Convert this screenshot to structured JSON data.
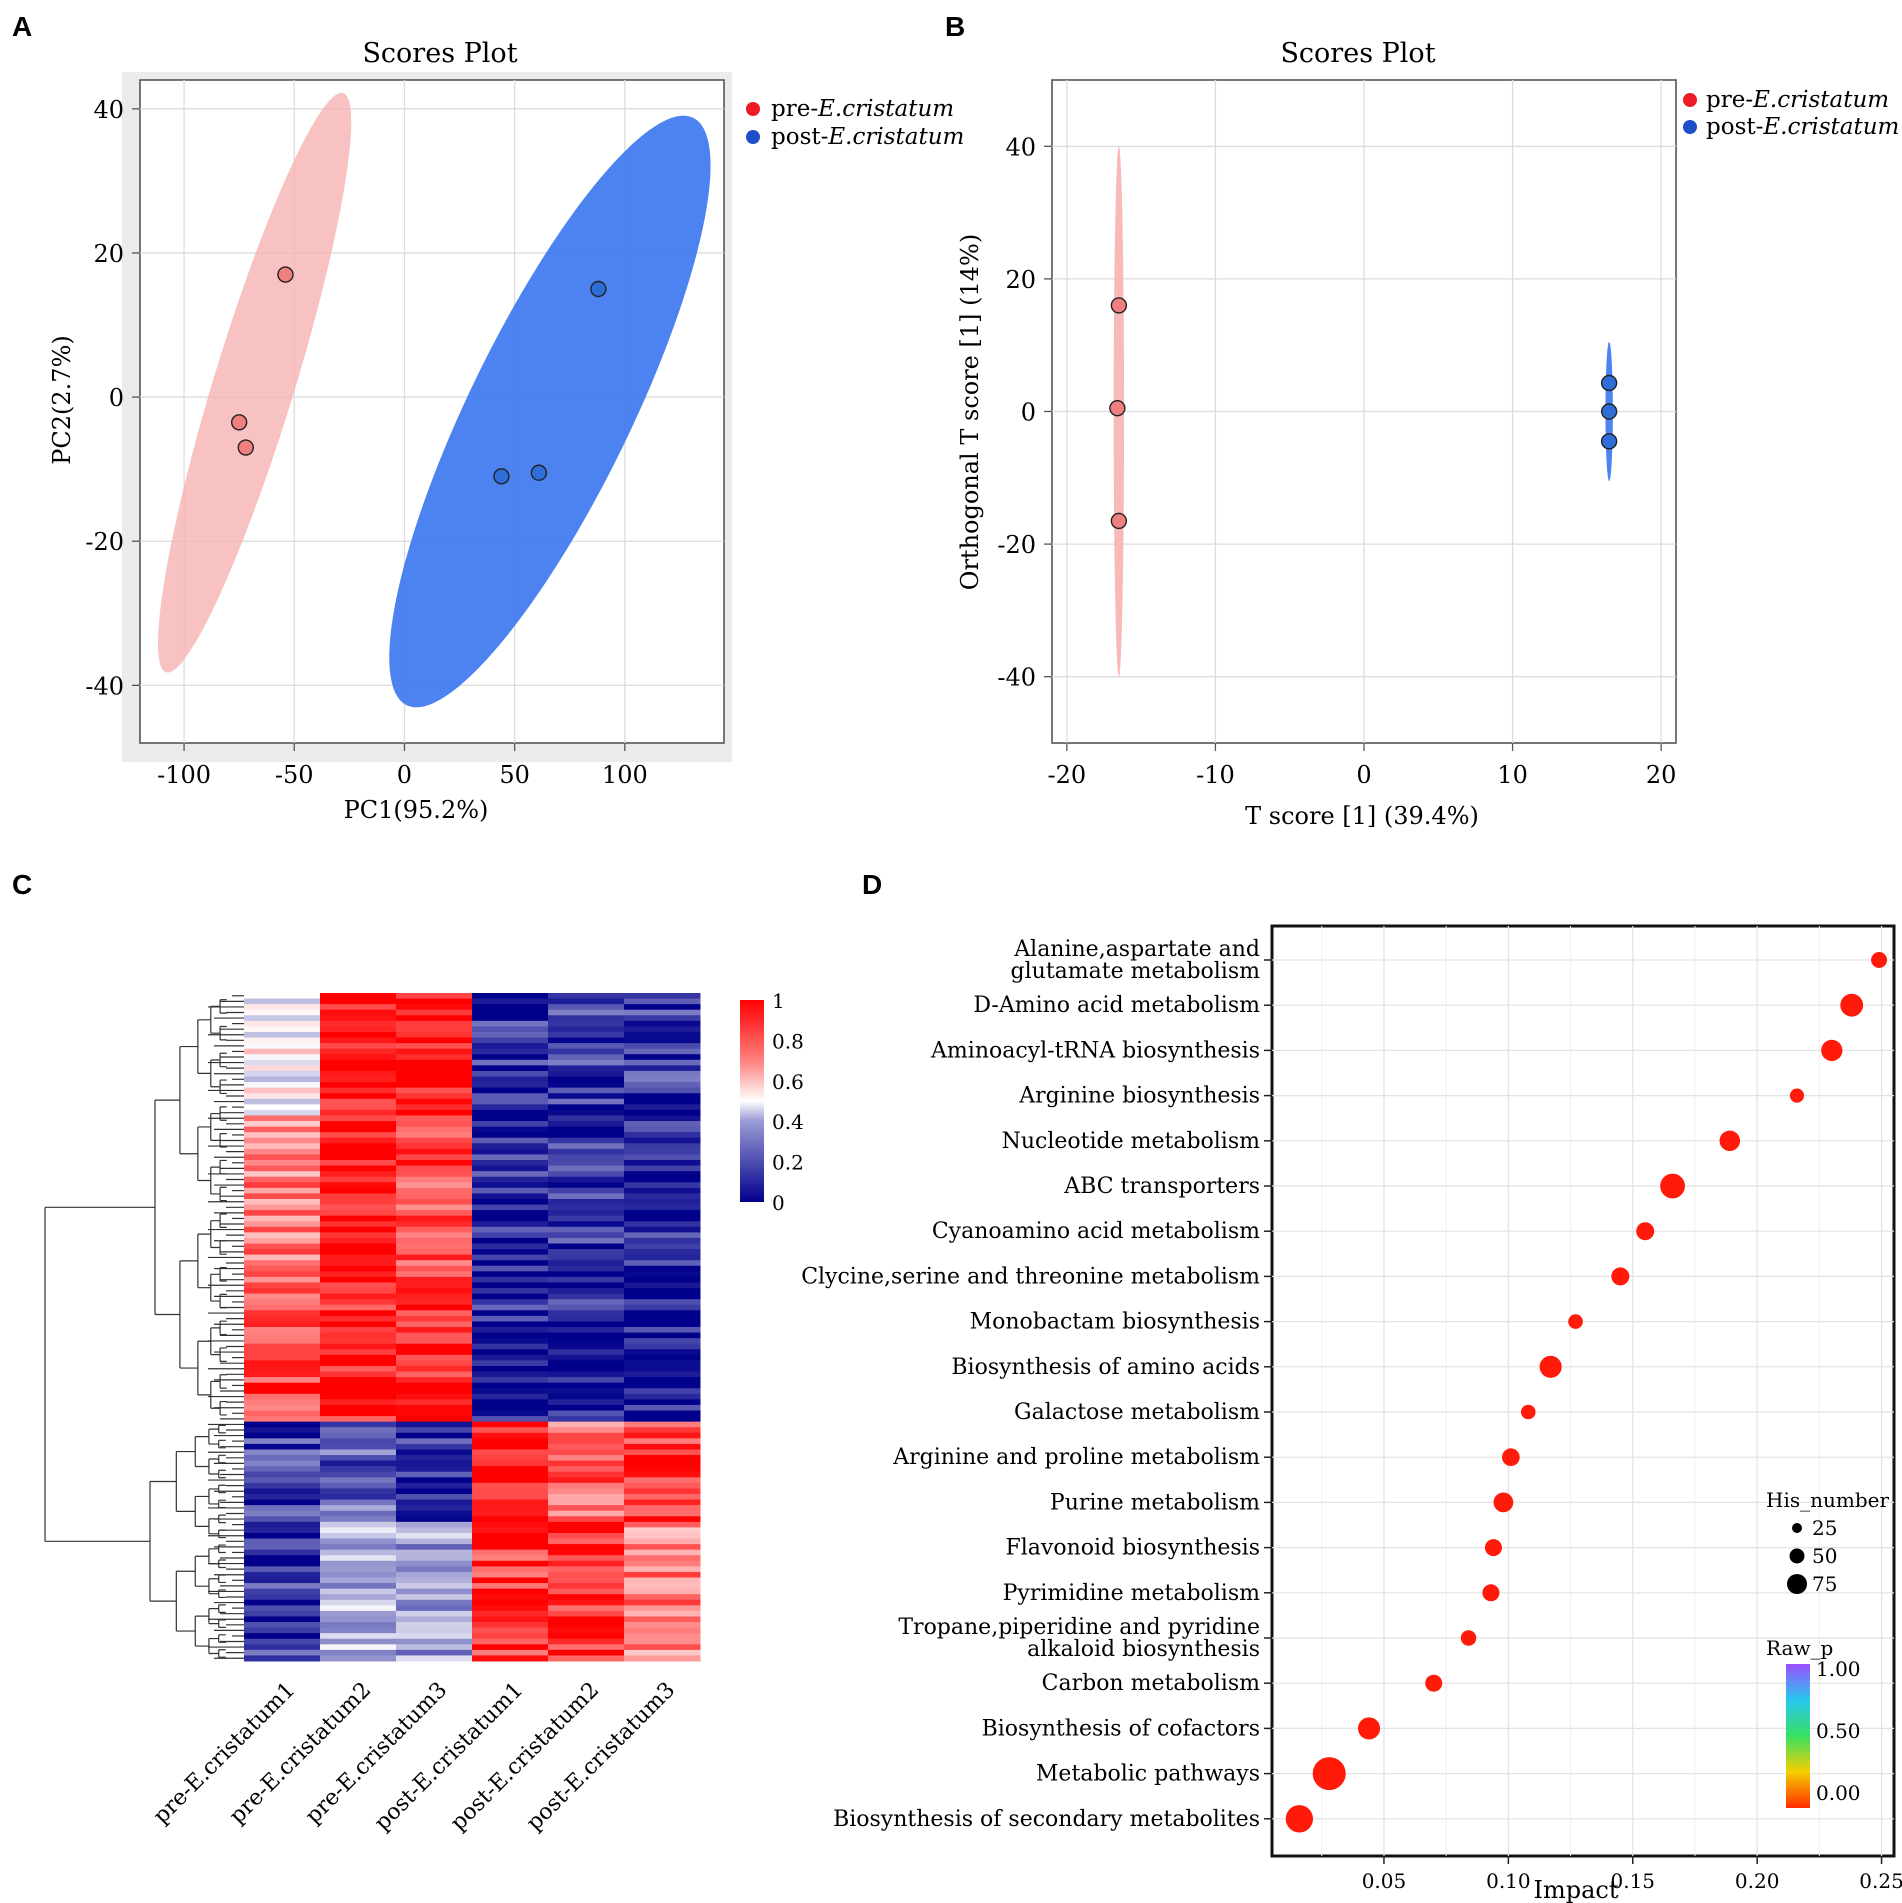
{
  "chart_data": [
    {
      "panel": "A",
      "type": "scatter",
      "title": "Scores Plot",
      "xlabel": "PC1(95.2%)",
      "ylabel": "PC2(2.7%)",
      "xlim": [
        -120,
        145
      ],
      "ylim": [
        -48,
        44
      ],
      "xticks": [
        -100,
        -50,
        0,
        50,
        100
      ],
      "yticks": [
        40,
        20,
        0,
        -20,
        -40
      ],
      "series": [
        {
          "name": "pre-",
          "italic": "E.cristatum",
          "color": "#ee1c25",
          "ellipse_color": "#f7b3b3",
          "points": [
            {
              "x": -54,
              "y": 17
            },
            {
              "x": -75,
              "y": -3.5
            },
            {
              "x": -72,
              "y": -7
            }
          ],
          "ellipse": {
            "cx": -68,
            "cy": 2,
            "rx": 76,
            "ry": 7,
            "angle_deg": 73
          }
        },
        {
          "name": "post-",
          "italic": "E.cristatum",
          "color": "#1f4fc8",
          "ellipse_color": "#3d78f0",
          "points": [
            {
              "x": 88,
              "y": 15
            },
            {
              "x": 44,
              "y": -11
            },
            {
              "x": 61,
              "y": -10.5
            }
          ],
          "ellipse": {
            "cx": 66,
            "cy": -2,
            "rx": 82,
            "ry": 14,
            "angle_deg": 64
          }
        }
      ]
    },
    {
      "panel": "B",
      "type": "scatter",
      "title": "Scores Plot",
      "xlabel": "T score [1] (39.4%)",
      "ylabel": "Orthogonal T score [1] (14%)",
      "xlim": [
        -21,
        21
      ],
      "ylim": [
        -50,
        50
      ],
      "xticks": [
        -20,
        -10,
        0,
        10,
        20
      ],
      "yticks": [
        40,
        20,
        0,
        -20,
        -40
      ],
      "series": [
        {
          "name": "pre-",
          "italic": "E.cristatum",
          "color": "#ee1c25",
          "ellipse_color": "#f7b3b3",
          "points": [
            {
              "x": -16.5,
              "y": 16
            },
            {
              "x": -16.6,
              "y": 0.5
            },
            {
              "x": -16.5,
              "y": -16.5
            }
          ],
          "ellipse": {
            "cx": -16.5,
            "cy": 0,
            "rx": 0.35,
            "ry": 40
          }
        },
        {
          "name": "post-",
          "italic": "E.cristatum",
          "color": "#1f4fc8",
          "ellipse_color": "#3d78f0",
          "points": [
            {
              "x": 16.5,
              "y": 4.3
            },
            {
              "x": 16.5,
              "y": 0
            },
            {
              "x": 16.5,
              "y": -4.5
            }
          ],
          "ellipse": {
            "cx": 16.5,
            "cy": 0,
            "rx": 0.25,
            "ry": 10.5
          }
        }
      ]
    },
    {
      "panel": "C",
      "type": "heatmap",
      "columns": [
        "pre-E.cristatum1",
        "pre-E.cristatum2",
        "pre-E.cristatum3",
        "post-E.cristatum1",
        "post-E.cristatum2",
        "post-E.cristatum3"
      ],
      "colorbar": {
        "min": 0,
        "max": 1,
        "ticks": [
          "1",
          "0.8",
          "0.6",
          "0.4",
          "0.2",
          "0"
        ],
        "colors": [
          "#00008b",
          "#ffffff",
          "#ff0000"
        ]
      },
      "blocks": [
        {
          "rows": 22,
          "values": [
            0.5,
            0.98,
            0.98,
            0.08,
            0.12,
            0.1
          ]
        },
        {
          "rows": 30,
          "values": [
            0.75,
            0.98,
            0.85,
            0.06,
            0.1,
            0.06
          ]
        },
        {
          "rows": 25,
          "values": [
            0.88,
            0.95,
            0.95,
            0.05,
            0.06,
            0.04
          ]
        },
        {
          "rows": 18,
          "values": [
            0.12,
            0.2,
            0.1,
            0.95,
            0.8,
            0.9
          ]
        },
        {
          "rows": 25,
          "values": [
            0.1,
            0.35,
            0.3,
            0.9,
            0.92,
            0.75
          ]
        }
      ]
    },
    {
      "panel": "D",
      "type": "scatter",
      "xlabel": "Impact",
      "xlim": [
        0.005,
        0.255
      ],
      "xticks": [
        "0.05",
        "0.10",
        "0.15",
        "0.20",
        "0.25"
      ],
      "size_legend": {
        "title": "His_number",
        "values": [
          25,
          50,
          75
        ]
      },
      "color_legend": {
        "title": "Raw_p",
        "ticks": [
          "1.00",
          "0.50",
          "0.00"
        ]
      },
      "pathways": [
        {
          "name": "Alanine,aspartate and\nglutamate metabolism",
          "impact": 0.249,
          "size": 10,
          "p": 0.0
        },
        {
          "name": "D-Amino acid metabolism",
          "impact": 0.238,
          "size": 35,
          "p": 0.0
        },
        {
          "name": "Aminoacyl-tRNA biosynthesis",
          "impact": 0.23,
          "size": 28,
          "p": 0.0
        },
        {
          "name": "Arginine biosynthesis",
          "impact": 0.216,
          "size": 6,
          "p": 0.0
        },
        {
          "name": "Nucleotide metabolism",
          "impact": 0.189,
          "size": 25,
          "p": 0.0
        },
        {
          "name": "ABC transporters",
          "impact": 0.166,
          "size": 45,
          "p": 0.0
        },
        {
          "name": "Cyanoamino acid metabolism",
          "impact": 0.155,
          "size": 16,
          "p": 0.0
        },
        {
          "name": "Clycine,serine and threonine metabolism",
          "impact": 0.145,
          "size": 16,
          "p": 0.0
        },
        {
          "name": "Monobactam biosynthesis",
          "impact": 0.127,
          "size": 7,
          "p": 0.0
        },
        {
          "name": "Biosynthesis of amino acids",
          "impact": 0.117,
          "size": 32,
          "p": 0.0
        },
        {
          "name": "Galactose metabolism",
          "impact": 0.108,
          "size": 7,
          "p": 0.0
        },
        {
          "name": "Arginine and proline metabolism",
          "impact": 0.101,
          "size": 15,
          "p": 0.0
        },
        {
          "name": "Purine metabolism",
          "impact": 0.098,
          "size": 22,
          "p": 0.0
        },
        {
          "name": "Flavonoid biosynthesis",
          "impact": 0.094,
          "size": 13,
          "p": 0.0
        },
        {
          "name": "Pyrimidine metabolism",
          "impact": 0.093,
          "size": 13,
          "p": 0.0
        },
        {
          "name": "Tropane,piperidine and pyridine\nalkaloid biosynthesis",
          "impact": 0.084,
          "size": 9,
          "p": 0.0
        },
        {
          "name": "Carbon metabolism",
          "impact": 0.07,
          "size": 13,
          "p": 0.0
        },
        {
          "name": "Biosynthesis of cofactors",
          "impact": 0.044,
          "size": 32,
          "p": 0.0
        },
        {
          "name": "Metabolic pathways",
          "impact": 0.028,
          "size": 100,
          "p": 0.0
        },
        {
          "name": "Biosynthesis of secondary metabolites",
          "impact": 0.016,
          "size": 60,
          "p": 0.0
        }
      ]
    }
  ],
  "panel_letters": {
    "a": "A",
    "b": "B",
    "c": "C",
    "d": "D"
  }
}
